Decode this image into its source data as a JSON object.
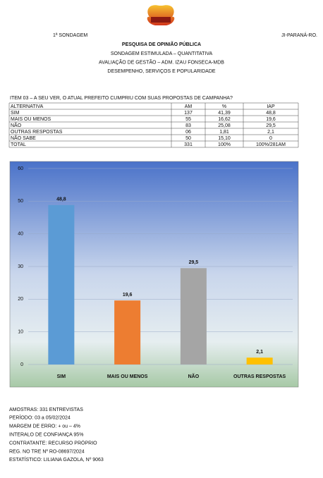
{
  "header": {
    "left": "1ª SONDAGEM",
    "right": "JI-PARANÁ-RO.",
    "title": "PESQUISA DE OPINIÃO PÚBLICA",
    "lines": [
      "SONDAGEM ESTIMULADA – QUANTITATIVA",
      "AVALIAÇÃO DE GESTÃO – ADM. IZAU FONSECA-MDB",
      "DESEMPENHO, SERVIÇOS E POPULARIDADE"
    ]
  },
  "question": "ITEM 03 – A SEU VER, O ATUAL PREFEITO CUMPRIU COM SUAS PROPOSTAS DE CAMPANHA?",
  "table": {
    "header": [
      "ALTERNATIVA",
      "AM",
      "%",
      "IAP"
    ],
    "rows": [
      [
        "SIM",
        "137",
        "41,39",
        "48,8"
      ],
      [
        "MAIS OU MENOS",
        "55",
        "16,62",
        "19,6"
      ],
      [
        "NÃO",
        "83",
        "25,08",
        "29,5"
      ],
      [
        "OUTRAS RESPOSTAS",
        "06",
        "1,81",
        "2,1"
      ],
      [
        "NÃO SABE",
        "50",
        "15,10",
        "0"
      ],
      [
        "TOTAL",
        "331",
        "100%",
        "100%/281AM"
      ]
    ]
  },
  "chart_data": {
    "type": "bar",
    "categories": [
      "SIM",
      "MAIS OU MENOS",
      "NÃO",
      "OUTRAS RESPOSTAS"
    ],
    "values": [
      48.8,
      19.6,
      29.5,
      2.1
    ],
    "value_labels": [
      "48,8",
      "19,6",
      "29,5",
      "2,1"
    ],
    "colors": [
      "#5b9bd5",
      "#ed7d31",
      "#a5a5a5",
      "#ffc000"
    ],
    "ylim": [
      0,
      60
    ],
    "yticks": [
      0,
      10,
      20,
      30,
      40,
      50,
      60
    ],
    "grid": true
  },
  "footer": [
    "AMOSTRAS: 331 ENTREVISTAS",
    "PERÍODO: 03 a 05/02/2024",
    "MARGEM DE ERRO: + ou – 4%",
    "INTERALO DE CONFIANÇA 95%",
    "CONTRATANTE: RECURSO PRÓPRIO",
    "REG. NO TRE Nº RO-08697/2024",
    "ESTATÍSTICO: LILIANA GAZOLA, Nº 9063"
  ]
}
